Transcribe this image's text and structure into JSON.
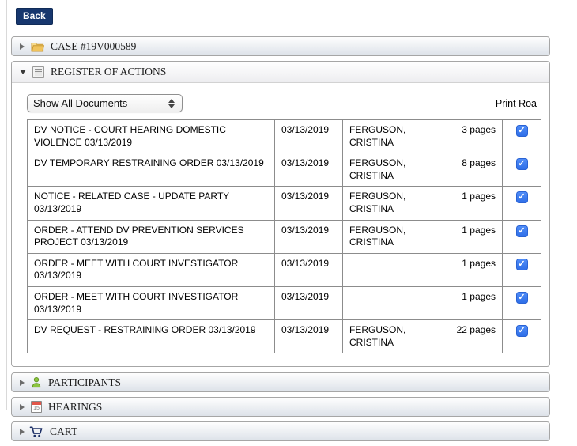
{
  "back_button": {
    "label": "Back"
  },
  "sections": [
    {
      "id": "case",
      "label": "CASE #19V000589",
      "icon": "folder-icon",
      "expanded": false
    },
    {
      "id": "register",
      "label": "REGISTER OF ACTIONS",
      "icon": "register-icon",
      "expanded": true
    },
    {
      "id": "participants",
      "label": "PARTICIPANTS",
      "icon": "person-icon",
      "expanded": false
    },
    {
      "id": "hearings",
      "label": "HEARINGS",
      "icon": "calendar-icon",
      "expanded": false
    },
    {
      "id": "cart",
      "label": "CART",
      "icon": "cart-icon",
      "expanded": false
    }
  ],
  "register_panel": {
    "filter_select": {
      "value": "Show All Documents"
    },
    "print_label": "Print Roa",
    "table": {
      "columns": [
        "document",
        "date",
        "party",
        "pages",
        "selected"
      ],
      "rows": [
        {
          "name": "DV NOTICE - COURT HEARING DOMESTIC VIOLENCE 03/13/2019",
          "date": "03/13/2019",
          "party": "FERGUSON, CRISTINA",
          "pages": "3 pages",
          "checked": true
        },
        {
          "name": "DV TEMPORARY RESTRAINING ORDER 03/13/2019",
          "date": "03/13/2019",
          "party": "FERGUSON, CRISTINA",
          "pages": "8 pages",
          "checked": true
        },
        {
          "name": "NOTICE - RELATED CASE - UPDATE PARTY 03/13/2019",
          "date": "03/13/2019",
          "party": "FERGUSON, CRISTINA",
          "pages": "1 pages",
          "checked": true
        },
        {
          "name": "ORDER - ATTEND DV PREVENTION SERVICES PROJECT 03/13/2019",
          "date": "03/13/2019",
          "party": "FERGUSON, CRISTINA",
          "pages": "1 pages",
          "checked": true
        },
        {
          "name": "ORDER - MEET WITH COURT INVESTIGATOR 03/13/2019",
          "date": "03/13/2019",
          "party": "",
          "pages": "1 pages",
          "checked": true
        },
        {
          "name": "ORDER - MEET WITH COURT INVESTIGATOR 03/13/2019",
          "date": "03/13/2019",
          "party": "",
          "pages": "1 pages",
          "checked": true
        },
        {
          "name": "DV REQUEST - RESTRAINING ORDER 03/13/2019",
          "date": "03/13/2019",
          "party": "FERGUSON, CRISTINA",
          "pages": "22 pages",
          "checked": true
        }
      ]
    },
    "calendar_icon_day": "15"
  },
  "colors": {
    "back_button_bg": "#17376e",
    "checkbox_blue": "#3d7ef7",
    "header_gradient_bottom": "#dde2e9",
    "folder_gold": "#f0c35c",
    "person_green": "#8bc53f",
    "calendar_red": "#e2564a",
    "cart_navy": "#1c2f66"
  }
}
